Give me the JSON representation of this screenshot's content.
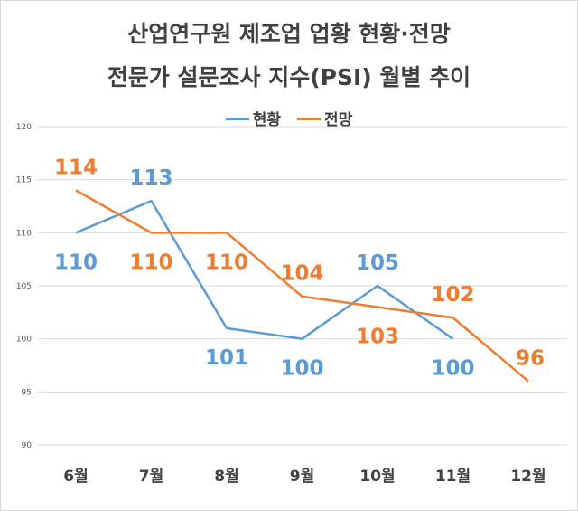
{
  "chart_data": {
    "type": "line",
    "title": "산업연구원 제조업 업황 현황·전망",
    "subtitle": "전문가 설문조사 지수(PSI) 월별 추이",
    "categories": [
      "6월",
      "7월",
      "8월",
      "9월",
      "10월",
      "11월",
      "12월"
    ],
    "ylim": [
      90,
      120
    ],
    "yticks": [
      90,
      95,
      100,
      105,
      110,
      115,
      120
    ],
    "grid": true,
    "legend_position": "top",
    "series": [
      {
        "name": "현황",
        "color": "#5b9bd5",
        "values": [
          110,
          113,
          101,
          100,
          105,
          100,
          null
        ],
        "labels": [
          "110",
          "113",
          "101",
          "100",
          "105",
          "100",
          ""
        ]
      },
      {
        "name": "전망",
        "color": "#ed7d31",
        "values": [
          114,
          110,
          110,
          104,
          103,
          102,
          96
        ],
        "labels": [
          "114",
          "110",
          "110",
          "104",
          "103",
          "102",
          "96"
        ]
      }
    ]
  }
}
